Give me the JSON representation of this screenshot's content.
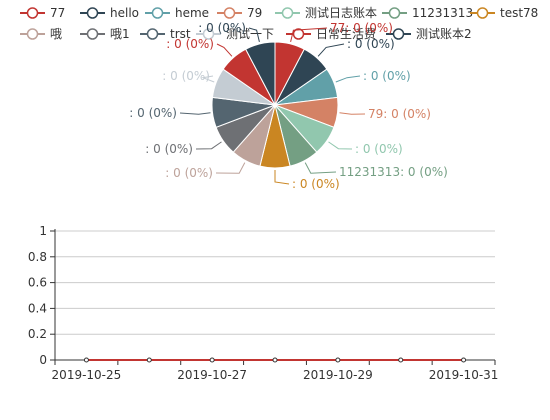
{
  "colors": {
    "palette": [
      "#c23531",
      "#2f4554",
      "#61a0a8",
      "#d48265",
      "#91c7ae",
      "#749f83",
      "#ca8622",
      "#bda29a",
      "#6e7074",
      "#546570",
      "#c4ccd3"
    ],
    "axis": "#333333",
    "grid": "#cccccc",
    "line": "#c23531",
    "background": "#ffffff"
  },
  "chart_data": [
    {
      "type": "pie",
      "legend_position": "top",
      "legend": [
        {
          "label": "77",
          "color": "#c23531"
        },
        {
          "label": "hello",
          "color": "#2f4554"
        },
        {
          "label": "heme",
          "color": "#61a0a8"
        },
        {
          "label": "79",
          "color": "#d48265"
        },
        {
          "label": "测试日志账本",
          "color": "#91c7ae"
        },
        {
          "label": "11231313",
          "color": "#749f83"
        },
        {
          "label": "test78",
          "color": "#ca8622"
        },
        {
          "label": "哦",
          "color": "#bda29a"
        },
        {
          "label": "哦1",
          "color": "#6e7074"
        },
        {
          "label": "trst",
          "color": "#546570"
        },
        {
          "label": "测试一下",
          "color": "#c4ccd3"
        },
        {
          "label": "日常生活费",
          "color": "#c23531"
        },
        {
          "label": "测试账本2",
          "color": "#2f4554"
        }
      ],
      "slices": [
        {
          "name": "77",
          "value": 0,
          "label": "77: 0 (0%)",
          "color": "#c23531"
        },
        {
          "name": "hello",
          "value": 0,
          "label": ": 0 (0%)",
          "color": "#2f4554"
        },
        {
          "name": "heme",
          "value": 0,
          "label": ": 0 (0%)",
          "color": "#61a0a8"
        },
        {
          "name": "79",
          "value": 0,
          "label": "79: 0 (0%)",
          "color": "#d48265"
        },
        {
          "name": "测试日志账本",
          "value": 0,
          "label": ": 0 (0%)",
          "color": "#91c7ae"
        },
        {
          "name": "11231313",
          "value": 0,
          "label": "11231313: 0 (0%)",
          "color": "#749f83"
        },
        {
          "name": "test78",
          "value": 0,
          "label": ": 0 (0%)",
          "color": "#ca8622"
        },
        {
          "name": "哦",
          "value": 0,
          "label": ": 0 (0%)",
          "color": "#bda29a"
        },
        {
          "name": "哦1",
          "value": 0,
          "label": ": 0 (0%)",
          "color": "#6e7074"
        },
        {
          "name": "trst",
          "value": 0,
          "label": ": 0 (0%)",
          "color": "#546570"
        },
        {
          "name": "测试一下",
          "value": 0,
          "label": ": 0 (0%)",
          "color": "#c4ccd3"
        },
        {
          "name": "日常生活费",
          "value": 0,
          "label": ": 0 (0%)",
          "color": "#c23531"
        },
        {
          "name": "测试账本2",
          "value": 0,
          "label": ": 0 (0%)",
          "color": "#2f4554"
        }
      ]
    },
    {
      "type": "line",
      "x": [
        "2019-10-25",
        "2019-10-26",
        "2019-10-27",
        "2019-10-28",
        "2019-10-29",
        "2019-10-30",
        "2019-10-31"
      ],
      "x_tick_labels": [
        "2019-10-25",
        "2019-10-27",
        "2019-10-29",
        "2019-10-31"
      ],
      "series": [
        {
          "values": [
            0,
            0,
            0,
            0,
            0,
            0,
            0
          ]
        }
      ],
      "ylim": [
        0,
        1
      ],
      "yticks": [
        0,
        0.2,
        0.4,
        0.6,
        0.8,
        1
      ],
      "grid": true,
      "xlabel": "",
      "ylabel": ""
    }
  ]
}
